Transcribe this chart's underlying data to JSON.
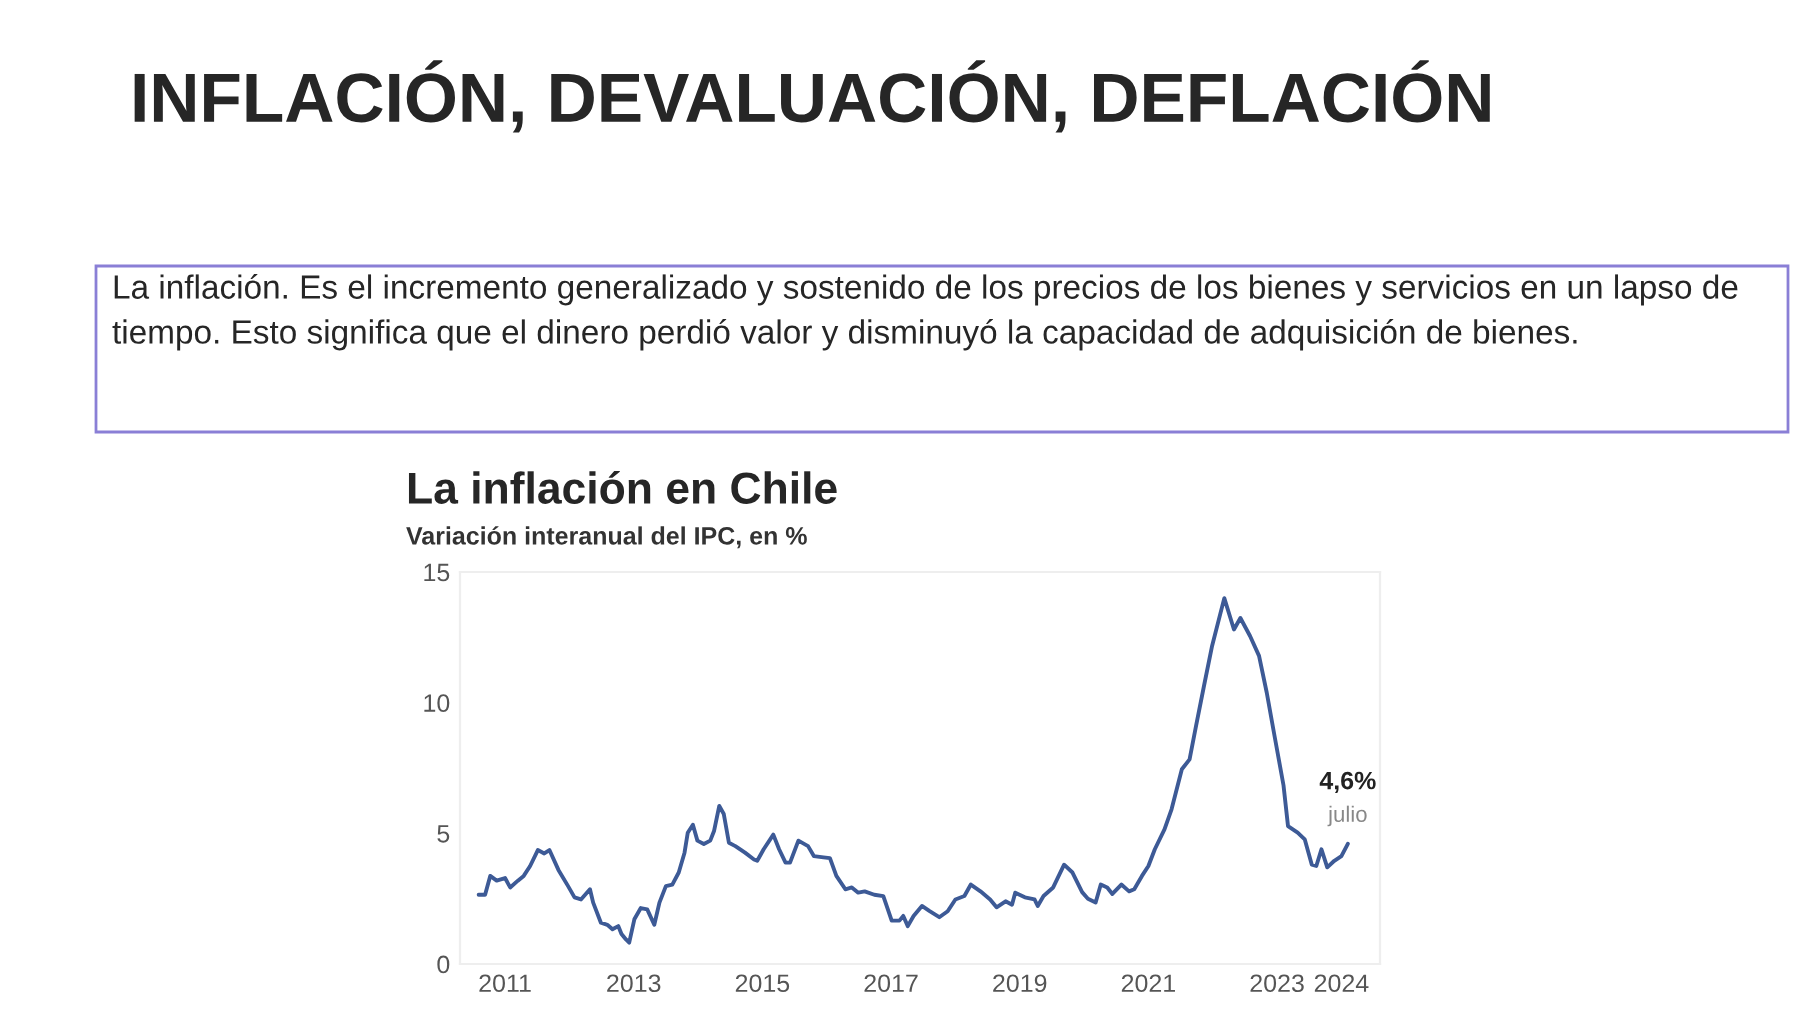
{
  "chart_data": {
    "type": "line",
    "title": "INFLACIÓN, DEVALUACIÓN, DEFLACIÓN",
    "subtitle": "La inflación en Chile",
    "ylabel": "Variación interanual del IPC, en %",
    "annotations": [
      "La inflación. Es el incremento generalizado y sostenido de los precios de los bienes y servicios en un lapso de tiempo. Esto significa que el dinero perdió valor y disminuyó la capacidad de adquisición de bienes.",
      {
        "text": "4,6%",
        "x": 2024.1,
        "y": 4.6
      },
      {
        "text": "julio",
        "x": 2024.1,
        "y": 4.6
      }
    ],
    "xlim": [
      2010.3,
      2024.6
    ],
    "xticks": [
      2011,
      2013,
      2015,
      2017,
      2019,
      2021,
      2023,
      2024
    ],
    "ylim": [
      0,
      15
    ],
    "yticks": [
      0,
      5,
      10,
      15
    ],
    "grid": false,
    "legend": false,
    "marker": "none",
    "line_style": "solid",
    "series": [
      {
        "color": "#3d5a96",
        "x": [
          2010.59,
          2010.69,
          2010.77,
          2010.87,
          2011.0,
          2011.08,
          2011.2,
          2011.29,
          2011.39,
          2011.51,
          2011.61,
          2011.69,
          2011.83,
          2011.98,
          2012.08,
          2012.18,
          2012.32,
          2012.37,
          2012.49,
          2012.59,
          2012.67,
          2012.76,
          2012.81,
          2012.88,
          2012.93,
          2013.01,
          2013.11,
          2013.21,
          2013.32,
          2013.4,
          2013.5,
          2013.6,
          2013.7,
          2013.79,
          2013.84,
          2013.92,
          2013.99,
          2014.09,
          2014.19,
          2014.25,
          2014.33,
          2014.4,
          2014.48,
          2014.58,
          2014.73,
          2014.87,
          2014.92,
          2015.02,
          2015.17,
          2015.26,
          2015.36,
          2015.43,
          2015.56,
          2015.71,
          2015.8,
          2015.95,
          2016.05,
          2016.15,
          2016.29,
          2016.39,
          2016.49,
          2016.59,
          2016.74,
          2016.88,
          2017.01,
          2017.13,
          2017.19,
          2017.26,
          2017.35,
          2017.48,
          2017.6,
          2017.75,
          2017.88,
          2018.0,
          2018.14,
          2018.24,
          2018.39,
          2018.54,
          2018.64,
          2018.78,
          2018.88,
          2018.93,
          2019.08,
          2019.23,
          2019.28,
          2019.37,
          2019.52,
          2019.69,
          2019.82,
          2019.97,
          2020.06,
          2020.18,
          2020.26,
          2020.36,
          2020.44,
          2020.58,
          2020.7,
          2020.78,
          2020.9,
          2021.0,
          2021.1,
          2021.25,
          2021.36,
          2021.52,
          2021.64,
          2021.74,
          2021.86,
          2021.99,
          2022.18,
          2022.33,
          2022.43,
          2022.58,
          2022.72,
          2022.84,
          2022.97,
          2023.1,
          2023.17,
          2023.32,
          2023.43,
          2023.54,
          2023.61,
          2023.69,
          2023.78,
          2023.89,
          2024.0,
          2024.1
        ],
        "values": [
          2.65,
          2.65,
          3.37,
          3.19,
          3.29,
          2.93,
          3.19,
          3.37,
          3.75,
          4.36,
          4.23,
          4.36,
          3.6,
          2.98,
          2.55,
          2.47,
          2.86,
          2.35,
          1.58,
          1.5,
          1.33,
          1.45,
          1.15,
          0.94,
          0.82,
          1.71,
          2.14,
          2.09,
          1.5,
          2.35,
          2.98,
          3.04,
          3.5,
          4.26,
          5.02,
          5.33,
          4.72,
          4.59,
          4.72,
          5.1,
          6.05,
          5.74,
          4.64,
          4.51,
          4.26,
          4.0,
          3.95,
          4.39,
          4.95,
          4.39,
          3.88,
          3.88,
          4.72,
          4.51,
          4.13,
          4.08,
          4.05,
          3.37,
          2.86,
          2.93,
          2.73,
          2.78,
          2.65,
          2.6,
          1.66,
          1.66,
          1.84,
          1.45,
          1.84,
          2.22,
          2.02,
          1.79,
          2.02,
          2.47,
          2.6,
          3.04,
          2.78,
          2.47,
          2.17,
          2.4,
          2.27,
          2.73,
          2.55,
          2.47,
          2.22,
          2.6,
          2.93,
          3.8,
          3.5,
          2.75,
          2.5,
          2.35,
          3.04,
          2.93,
          2.68,
          3.04,
          2.78,
          2.86,
          3.37,
          3.75,
          4.39,
          5.15,
          5.92,
          7.45,
          7.83,
          9.1,
          10.59,
          12.17,
          14.0,
          12.8,
          13.24,
          12.55,
          11.79,
          10.38,
          8.6,
          6.84,
          5.28,
          5.03,
          4.77,
          3.8,
          3.75,
          4.39,
          3.7,
          3.95,
          4.13,
          4.6
        ]
      }
    ]
  }
}
